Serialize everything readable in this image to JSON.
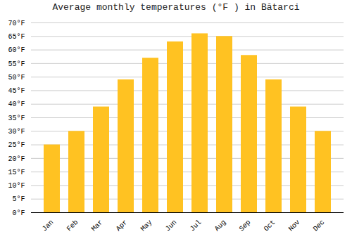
{
  "chart_data": {
    "type": "bar",
    "title": "Average monthly temperatures (°F ) in Bătarci",
    "categories": [
      "Jan",
      "Feb",
      "Mar",
      "Apr",
      "May",
      "Jun",
      "Jul",
      "Aug",
      "Sep",
      "Oct",
      "Nov",
      "Dec"
    ],
    "values": [
      25,
      30,
      39,
      49,
      57,
      63,
      66,
      65,
      58,
      49,
      39,
      30
    ],
    "color": "#FFC222",
    "ylim": [
      0,
      70
    ],
    "yticks": [
      {
        "value": 0,
        "label": "0°F"
      },
      {
        "value": 5,
        "label": "5°F"
      },
      {
        "value": 10,
        "label": "10°F"
      },
      {
        "value": 15,
        "label": "15°F"
      },
      {
        "value": 20,
        "label": "20°F"
      },
      {
        "value": 25,
        "label": "25°F"
      },
      {
        "value": 30,
        "label": "30°F"
      },
      {
        "value": 35,
        "label": "35°F"
      },
      {
        "value": 40,
        "label": "40°F"
      },
      {
        "value": 45,
        "label": "45°F"
      },
      {
        "value": 50,
        "label": "50°F"
      },
      {
        "value": 55,
        "label": "55°F"
      },
      {
        "value": 60,
        "label": "60°F"
      },
      {
        "value": 65,
        "label": "65°F"
      },
      {
        "value": 70,
        "label": "70°F"
      }
    ],
    "grid": true
  }
}
